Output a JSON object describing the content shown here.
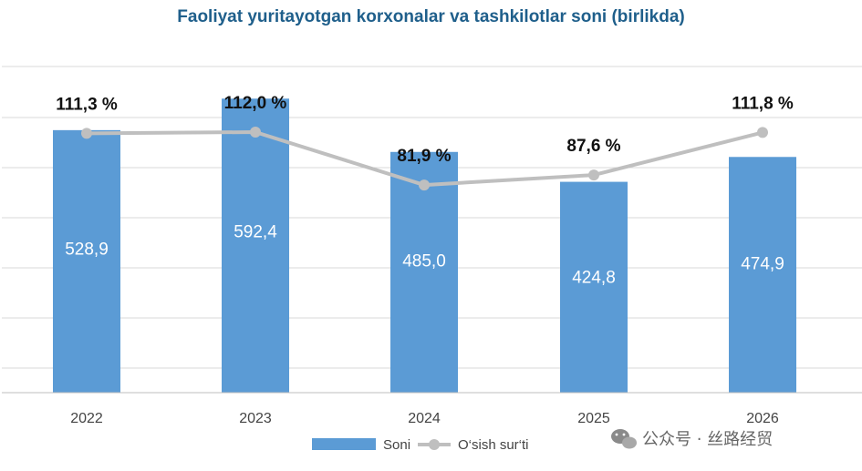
{
  "chart_data": {
    "type": "bar+line",
    "title": "Faoliyat yuritayotgan korxonalar va tashkilotlar soni (birlikda)",
    "categories": [
      "2022",
      "2023",
      "2024",
      "2025",
      "2026"
    ],
    "series": [
      {
        "name": "Soni",
        "type": "bar",
        "values": [
          528.9,
          592.4,
          485.0,
          424.8,
          474.9
        ],
        "labels": [
          "528,9",
          "592,4",
          "485,0",
          "424,8",
          "474,9"
        ],
        "color": "#5b9bd5"
      },
      {
        "name": "O‘sish sur‘ti",
        "type": "line",
        "values": [
          111.3,
          112.0,
          81.9,
          87.6,
          111.8
        ],
        "labels": [
          "111,3 %",
          "112,0 %",
          "81,9 %",
          "87,6 %",
          "111,8 %"
        ],
        "color": "#bfbfbf"
      }
    ],
    "grid": true,
    "legend_position": "bottom"
  },
  "watermark": {
    "text": "公众号 · 丝路经贸",
    "icon": "wechat-icon"
  }
}
